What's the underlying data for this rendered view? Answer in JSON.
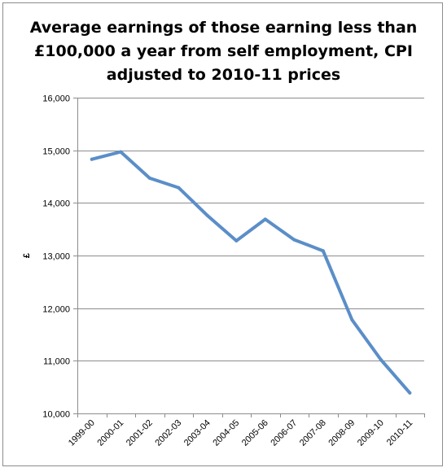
{
  "chart_data": {
    "type": "line",
    "title": "Average earnings of those earning less than £100,000 a year from self employment, CPI adjusted to 2010-11 prices",
    "xlabel": "",
    "ylabel": "£",
    "ylim": [
      10000,
      16000
    ],
    "yticks": [
      10000,
      11000,
      12000,
      13000,
      14000,
      15000,
      16000
    ],
    "ytick_labels": [
      "10,000",
      "11,000",
      "12,000",
      "13,000",
      "14,000",
      "15,000",
      "16,000"
    ],
    "grid": "horizontal",
    "legend": "none",
    "categories": [
      "1999-00",
      "2000-01",
      "2001-02",
      "2002-03",
      "2003-04",
      "2004-05",
      "2005-06",
      "2006-07",
      "2007-08",
      "2008-09",
      "2009-10",
      "2010-11"
    ],
    "series": [
      {
        "values": [
          14830,
          14970,
          14470,
          14290,
          13760,
          13280,
          13690,
          13300,
          13090,
          11780,
          11020,
          10390
        ],
        "color": "#5b8ec8"
      }
    ]
  }
}
